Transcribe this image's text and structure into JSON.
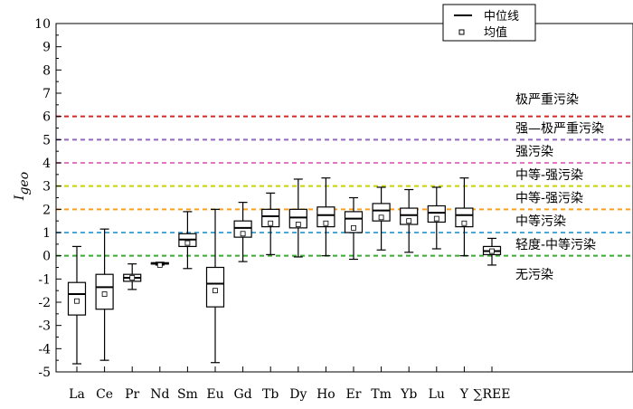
{
  "chart_data": {
    "type": "box",
    "ylabel_main": "I",
    "ylabel_sub": "geo",
    "ylim": [
      -5,
      10
    ],
    "yticks": [
      -5,
      -4,
      -3,
      -2,
      -1,
      0,
      1,
      2,
      3,
      4,
      5,
      6,
      7,
      8,
      9,
      10
    ],
    "categories": [
      "La",
      "Ce",
      "Pr",
      "Nd",
      "Sm",
      "Eu",
      "Gd",
      "Tb",
      "Dy",
      "Ho",
      "Er",
      "Tm",
      "Yb",
      "Lu",
      "Y",
      "∑REE"
    ],
    "boxes": [
      {
        "min": -4.65,
        "q1": -2.55,
        "median": -1.65,
        "q3": -1.15,
        "max": 0.4,
        "mean": -1.95
      },
      {
        "min": -4.5,
        "q1": -2.3,
        "median": -1.35,
        "q3": -0.8,
        "max": 1.15,
        "mean": -1.65
      },
      {
        "min": -1.45,
        "q1": -1.1,
        "median": -0.95,
        "q3": -0.8,
        "max": -0.35,
        "mean": -0.95
      },
      {
        "min": -0.4,
        "q1": -0.35,
        "median": -0.32,
        "q3": -0.3,
        "max": -0.28,
        "mean": -0.4
      },
      {
        "min": -0.55,
        "q1": 0.4,
        "median": 0.7,
        "q3": 0.95,
        "max": 1.9,
        "mean": 0.55
      },
      {
        "min": -4.6,
        "q1": -2.2,
        "median": -1.2,
        "q3": -0.5,
        "max": 2.0,
        "mean": -1.5
      },
      {
        "min": -0.25,
        "q1": 0.8,
        "median": 1.2,
        "q3": 1.5,
        "max": 2.3,
        "mean": 0.95
      },
      {
        "min": 0.05,
        "q1": 1.25,
        "median": 1.7,
        "q3": 2.0,
        "max": 2.7,
        "mean": 1.4
      },
      {
        "min": -0.05,
        "q1": 1.2,
        "median": 1.65,
        "q3": 2.0,
        "max": 3.3,
        "mean": 1.35
      },
      {
        "min": 0.0,
        "q1": 1.25,
        "median": 1.75,
        "q3": 2.1,
        "max": 3.35,
        "mean": 1.4
      },
      {
        "min": -0.15,
        "q1": 1.0,
        "median": 1.6,
        "q3": 1.9,
        "max": 2.5,
        "mean": 1.2
      },
      {
        "min": 0.25,
        "q1": 1.5,
        "median": 1.95,
        "q3": 2.25,
        "max": 2.95,
        "mean": 1.65
      },
      {
        "min": 0.15,
        "q1": 1.35,
        "median": 1.75,
        "q3": 2.05,
        "max": 2.85,
        "mean": 1.5
      },
      {
        "min": 0.3,
        "q1": 1.45,
        "median": 1.85,
        "q3": 2.15,
        "max": 2.95,
        "mean": 1.6
      },
      {
        "min": 0.0,
        "q1": 1.25,
        "median": 1.75,
        "q3": 2.05,
        "max": 3.35,
        "mean": 1.4
      },
      {
        "min": -0.4,
        "q1": 0.05,
        "median": 0.2,
        "q3": 0.4,
        "max": 0.75,
        "mean": 0.2
      }
    ],
    "thresholds": [
      {
        "value": 6,
        "color": "#d62728"
      },
      {
        "value": 5,
        "color": "#9467bd"
      },
      {
        "value": 4,
        "color": "#e377c2"
      },
      {
        "value": 3,
        "color": "#c8d400"
      },
      {
        "value": 2,
        "color": "#ff9f1a"
      },
      {
        "value": 1,
        "color": "#4aa8d8"
      },
      {
        "value": 0,
        "color": "#3aaa35"
      }
    ],
    "zone_labels": [
      {
        "text": "极严重污染",
        "value": 6.75
      },
      {
        "text": "强—极严重污染",
        "value": 5.5
      },
      {
        "text": "强污染",
        "value": 4.5
      },
      {
        "text": "中等-强污染",
        "value": 3.5
      },
      {
        "text": "中等-强污染",
        "value": 2.5
      },
      {
        "text": "中等污染",
        "value": 1.5
      },
      {
        "text": "轻度-中等污染",
        "value": 0.5
      },
      {
        "text": "无污染",
        "value": -0.8
      }
    ],
    "legend": {
      "placement": "top-right",
      "median_label": "中位线",
      "mean_label": "均值"
    }
  }
}
